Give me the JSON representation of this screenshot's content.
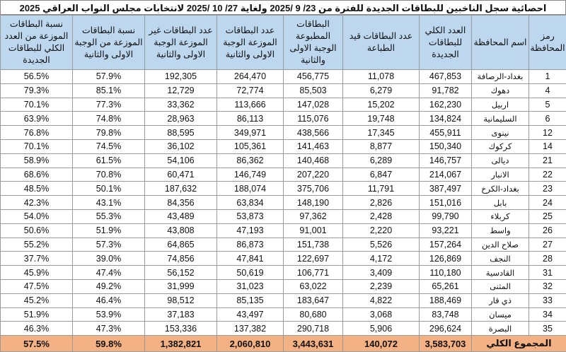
{
  "title": "احصائية سجل الناخبين للبطاقات الجديدة للفترة من 23/ 9 /2025 ولغاية 27/ 10 /2025 لانتخابات مجلس النواب العراقي 2025",
  "columns": [
    "رمز المحافظة",
    "اسم المحافظة",
    "العدد الكلي للبطاقات الجديدة",
    "عدد البطاقات قيد الطباعة",
    "البطاقات المطبوعة الوجبة الاولى والثانية",
    "عدد البطاقات الموزعة الوجبة الاولى والثانية",
    "عدد البطاقات غير الموزعة الوجبة الاولى والثانية",
    "نسبة البطاقات الموزعة من الوجبة الاولى والثانية",
    "نسبة البطاقات الموزعة من العدد الكلي للبطاقات الجديدة"
  ],
  "rows": [
    [
      "1",
      "بغداد-الرصافة",
      "467,853",
      "11,078",
      "456,775",
      "264,470",
      "192,305",
      "57.9%",
      "56.5%"
    ],
    [
      "4",
      "دهوك",
      "91,782",
      "6,279",
      "85,503",
      "72,774",
      "12,729",
      "85.1%",
      "79.3%"
    ],
    [
      "5",
      "اربيل",
      "162,230",
      "15,202",
      "147,028",
      "113,666",
      "33,362",
      "77.3%",
      "70.1%"
    ],
    [
      "6",
      "السليمانية",
      "134,824",
      "19,748",
      "115,076",
      "86,113",
      "28,963",
      "74.8%",
      "63.9%"
    ],
    [
      "12",
      "نينوى",
      "455,911",
      "17,345",
      "438,566",
      "349,971",
      "88,595",
      "79.8%",
      "76.8%"
    ],
    [
      "14",
      "كركوك",
      "150,340",
      "8,877",
      "141,463",
      "105,361",
      "36,102",
      "74.5%",
      "70.1%"
    ],
    [
      "21",
      "ديالى",
      "146,757",
      "6,289",
      "140,468",
      "86,362",
      "54,106",
      "61.5%",
      "58.9%"
    ],
    [
      "22",
      "الانبار",
      "214,067",
      "6,847",
      "207,220",
      "146,749",
      "60,471",
      "70.8%",
      "68.6%"
    ],
    [
      "23",
      "بغداد-الكرخ",
      "387,497",
      "11,791",
      "375,706",
      "188,074",
      "187,632",
      "50.1%",
      "48.5%"
    ],
    [
      "24",
      "بابل",
      "151,016",
      "2,826",
      "148,190",
      "63,834",
      "84,356",
      "43.1%",
      "42.3%"
    ],
    [
      "25",
      "كربلاء",
      "99,790",
      "2,428",
      "97,362",
      "53,873",
      "43,489",
      "55.3%",
      "54.0%"
    ],
    [
      "26",
      "واسط",
      "93,221",
      "2,220",
      "91,001",
      "47,193",
      "43,808",
      "51.9%",
      "50.6%"
    ],
    [
      "27",
      "صلاح الدين",
      "157,264",
      "5,526",
      "151,738",
      "86,873",
      "64,865",
      "57.3%",
      "55.2%"
    ],
    [
      "28",
      "النجف",
      "126,869",
      "4,172",
      "122,697",
      "47,841",
      "74,856",
      "39.0%",
      "37.7%"
    ],
    [
      "31",
      "القادسية",
      "110,180",
      "3,409",
      "106,771",
      "50,619",
      "56,152",
      "47.4%",
      "45.9%"
    ],
    [
      "32",
      "المثنى",
      "65,261",
      "2,239",
      "63,022",
      "31,023",
      "31,999",
      "49.2%",
      "47.5%"
    ],
    [
      "33",
      "ذي قار",
      "188,469",
      "4,822",
      "183,647",
      "85,135",
      "98,512",
      "46.4%",
      "45.2%"
    ],
    [
      "34",
      "ميسان",
      "83,748",
      "3,068",
      "80,680",
      "43,497",
      "37,183",
      "53.9%",
      "51.9%"
    ],
    [
      "35",
      "البصرة",
      "296,624",
      "5,906",
      "290,718",
      "137,382",
      "153,336",
      "47.3%",
      "46.3%"
    ]
  ],
  "total": {
    "label": "المجموع الكلي",
    "values": [
      "3,583,703",
      "140,072",
      "3,443,631",
      "2,060,810",
      "1,382,821",
      "59.8%",
      "57.5%"
    ]
  },
  "colors": {
    "header_bg": "#bdd7ee",
    "total_bg": "#f4b183"
  }
}
